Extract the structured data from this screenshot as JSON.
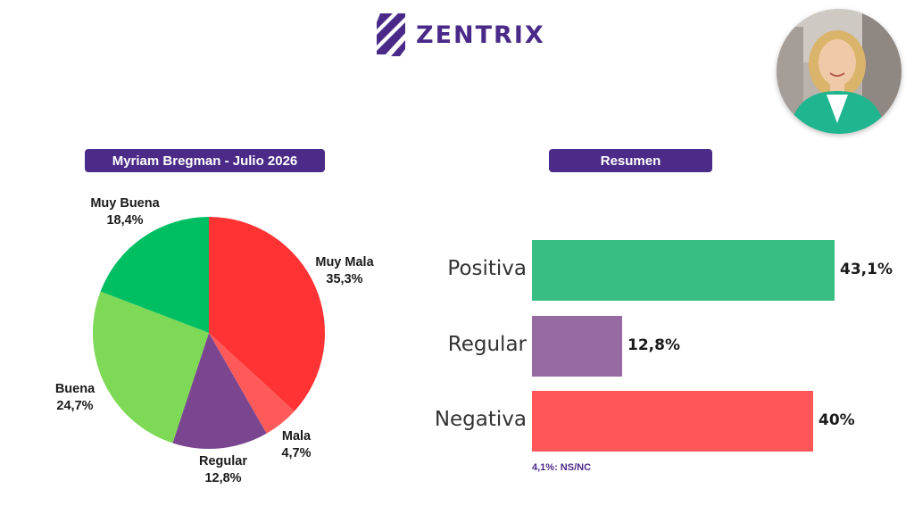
{
  "brand": {
    "name": "ZENTRIX",
    "color": "#4a2a88"
  },
  "avatar": {
    "icon": "person-photo"
  },
  "left_title": "Myriam Bregman - Julio 2026",
  "right_title": "Resumen",
  "footnote": "4,1%: NS/NC",
  "chart_data": [
    {
      "type": "pie",
      "title": "Myriam Bregman - Julio 2026",
      "start": "12 o'clock, clockwise",
      "slices": [
        {
          "label": "Muy Mala",
          "value": 35.3,
          "value_label": "35,3%",
          "color": "#ff3333"
        },
        {
          "label": "Mala",
          "value": 4.7,
          "value_label": "4,7%",
          "color": "#ff5a5a"
        },
        {
          "label": "Regular",
          "value": 12.8,
          "value_label": "12,8%",
          "color": "#7b4690"
        },
        {
          "label": "Buena",
          "value": 24.7,
          "value_label": "24,7%",
          "color": "#7ed957"
        },
        {
          "label": "Muy Buena",
          "value": 18.4,
          "value_label": "18,4%",
          "color": "#00bf63"
        }
      ]
    },
    {
      "type": "bar",
      "orientation": "horizontal",
      "title": "Resumen",
      "categories": [
        "Positiva",
        "Regular",
        "Negativa"
      ],
      "values": [
        43.1,
        12.8,
        40
      ],
      "value_labels": [
        "43,1%",
        "12,8%",
        "40%"
      ],
      "colors": [
        "#38bd82",
        "#9669a1",
        "#ff5757"
      ],
      "xlim": [
        0,
        43.1
      ],
      "grid": false
    }
  ]
}
